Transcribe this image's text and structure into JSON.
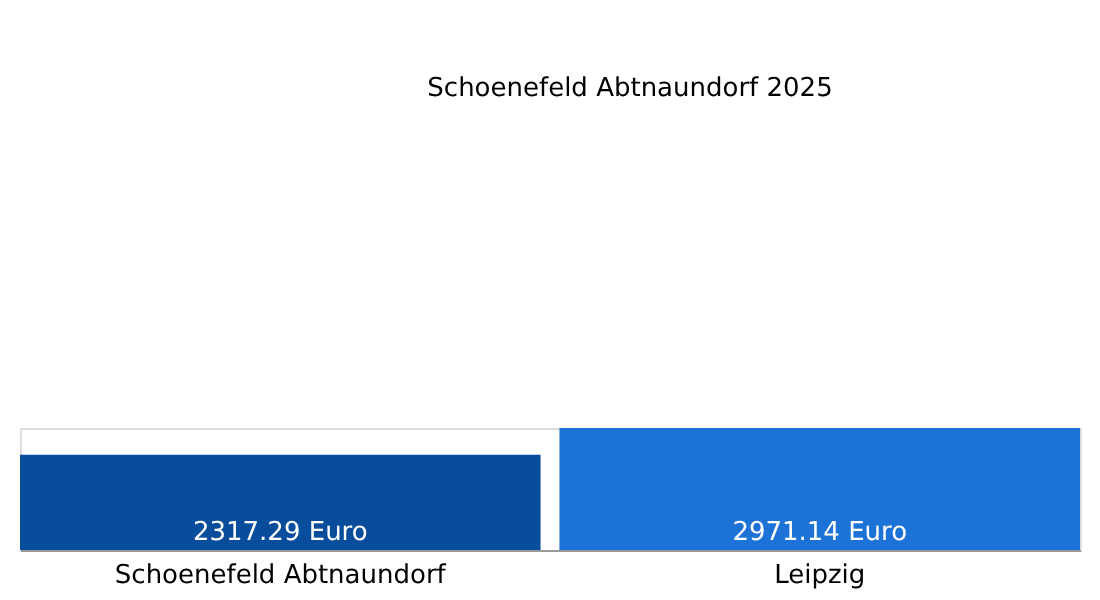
{
  "chart_data": {
    "type": "bar",
    "title": "Schoenefeld Abtnaundorf 2025",
    "categories": [
      "Schoenefeld Abtnaundorf",
      "Leipzig"
    ],
    "values": [
      2317.29,
      2971.14
    ],
    "colors": [
      "#084c9c",
      "#1c72d6"
    ],
    "value_labels": [
      "2317.29 Euro",
      "2971.14 Euro"
    ],
    "grid": false
  }
}
